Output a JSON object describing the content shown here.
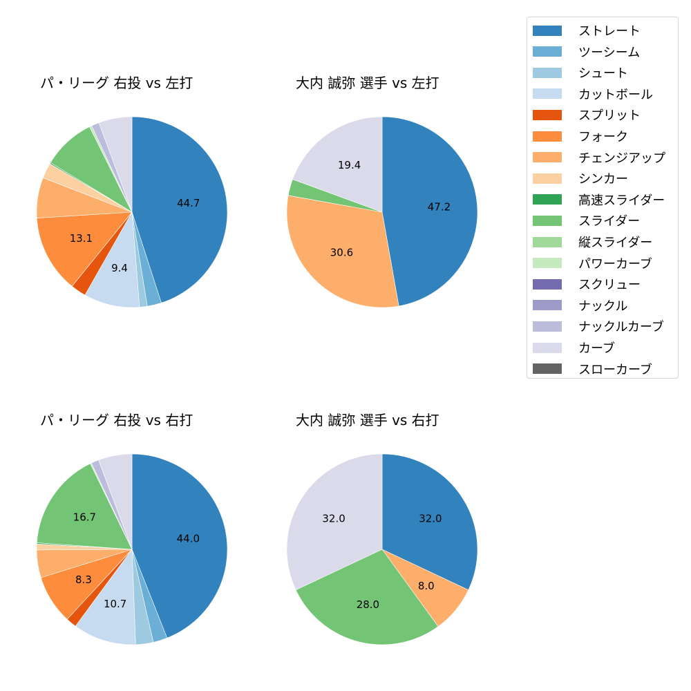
{
  "legend": {
    "items": [
      {
        "label": "ストレート",
        "color": "#3182bd"
      },
      {
        "label": "ツーシーム",
        "color": "#6baed6"
      },
      {
        "label": "シュート",
        "color": "#9ecae1"
      },
      {
        "label": "カットボール",
        "color": "#c6dbef"
      },
      {
        "label": "スプリット",
        "color": "#e6550d"
      },
      {
        "label": "フォーク",
        "color": "#fd8d3c"
      },
      {
        "label": "チェンジアップ",
        "color": "#fdae6b"
      },
      {
        "label": "シンカー",
        "color": "#fdd0a2"
      },
      {
        "label": "高速スライダー",
        "color": "#31a354"
      },
      {
        "label": "スライダー",
        "color": "#74c476"
      },
      {
        "label": "縦スライダー",
        "color": "#a1d99b"
      },
      {
        "label": "パワーカーブ",
        "color": "#c7e9c0"
      },
      {
        "label": "スクリュー",
        "color": "#756bb1"
      },
      {
        "label": "ナックル",
        "color": "#9e9ac8"
      },
      {
        "label": "ナックルカーブ",
        "color": "#bcbddc"
      },
      {
        "label": "カーブ",
        "color": "#dadaeb"
      },
      {
        "label": "スローカーブ",
        "color": "#636363"
      }
    ]
  },
  "chart_data": [
    {
      "type": "pie",
      "title": "パ・リーグ 右投 vs 左打",
      "categories": [
        "ストレート",
        "ツーシーム",
        "シュート",
        "カットボール",
        "スプリット",
        "フォーク",
        "チェンジアップ",
        "シンカー",
        "高速スライダー",
        "スライダー",
        "パワーカーブ",
        "ナックルカーブ",
        "カーブ"
      ],
      "values": [
        44.7,
        2.4,
        1.3,
        9.4,
        2.6,
        13.1,
        6.8,
        2.6,
        0.2,
        8.9,
        0.4,
        1.3,
        5.6
      ],
      "labels_shown": [
        "44.7",
        "9.4",
        "13.1"
      ],
      "start_angle": 90,
      "direction": "clockwise"
    },
    {
      "type": "pie",
      "title": "大内 誠弥 選手 vs 左打",
      "categories": [
        "ストレート",
        "チェンジアップ",
        "スライダー",
        "カーブ"
      ],
      "values": [
        47.2,
        30.6,
        2.8,
        19.4
      ],
      "labels_shown": [
        "47.2",
        "30.6",
        "19.4"
      ],
      "start_angle": 90,
      "direction": "clockwise"
    },
    {
      "type": "pie",
      "title": "パ・リーグ 右投 vs 右打",
      "categories": [
        "ストレート",
        "ツーシーム",
        "シュート",
        "カットボール",
        "スプリット",
        "フォーク",
        "チェンジアップ",
        "シンカー",
        "高速スライダー",
        "スライダー",
        "パワーカーブ",
        "ナックルカーブ",
        "カーブ"
      ],
      "values": [
        44.0,
        2.4,
        3.0,
        10.7,
        1.8,
        8.3,
        4.7,
        1.0,
        0.2,
        16.7,
        0.2,
        1.3,
        5.7
      ],
      "labels_shown": [
        "44.0",
        "10.7",
        "8.3",
        "16.7"
      ],
      "start_angle": 90,
      "direction": "clockwise"
    },
    {
      "type": "pie",
      "title": "大内 誠弥 選手 vs 右打",
      "categories": [
        "ストレート",
        "チェンジアップ",
        "スライダー",
        "カーブ"
      ],
      "values": [
        32.0,
        8.0,
        28.0,
        32.0
      ],
      "labels_shown": [
        "32.0",
        "8.0",
        "28.0",
        "32.0"
      ],
      "start_angle": 90,
      "direction": "clockwise"
    }
  ],
  "charts": [
    {
      "title": "パ・リーグ 右投 vs 左打"
    },
    {
      "title": "大内 誠弥 選手 vs 左打"
    },
    {
      "title": "パ・リーグ 右投 vs 右打"
    },
    {
      "title": "大内 誠弥 選手 vs 右打"
    }
  ]
}
